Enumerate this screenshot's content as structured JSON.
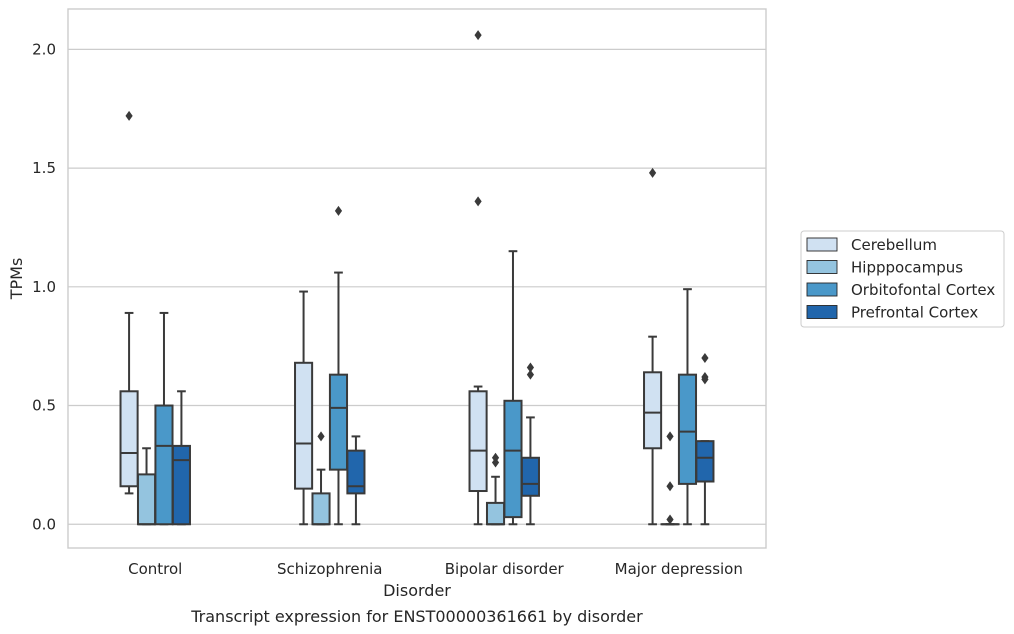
{
  "caption": "Transcript expression for ENST00000361661 by disorder",
  "chart_data": {
    "type": "box",
    "xlabel": "Disorder",
    "ylabel": "TPMs",
    "ylim": [
      -0.1,
      2.17
    ],
    "yticks": [
      0.0,
      0.5,
      1.0,
      1.5,
      2.0
    ],
    "ytick_labels": [
      "0.0",
      "0.5",
      "1.0",
      "1.5",
      "2.0"
    ],
    "grid": "horizontal",
    "legend_position": "right",
    "categories": [
      "Control",
      "Schizophrenia",
      "Bipolar disorder",
      "Major depression"
    ],
    "series": [
      {
        "name": "Cerebellum",
        "color": "#d0e1f2",
        "boxes": [
          {
            "whislo": 0.13,
            "q1": 0.16,
            "med": 0.3,
            "q3": 0.56,
            "whishi": 0.89,
            "fliers": [
              1.72
            ]
          },
          {
            "whislo": 0.0,
            "q1": 0.15,
            "med": 0.34,
            "q3": 0.68,
            "whishi": 0.98,
            "fliers": []
          },
          {
            "whislo": 0.0,
            "q1": 0.14,
            "med": 0.31,
            "q3": 0.56,
            "whishi": 0.58,
            "fliers": [
              1.36,
              2.06
            ]
          },
          {
            "whislo": 0.0,
            "q1": 0.32,
            "med": 0.47,
            "q3": 0.64,
            "whishi": 0.79,
            "fliers": [
              1.48
            ]
          }
        ]
      },
      {
        "name": "Hipppocampus",
        "color": "#94c4df",
        "boxes": [
          {
            "whislo": 0.0,
            "q1": 0.0,
            "med": 0.0,
            "q3": 0.21,
            "whishi": 0.32,
            "fliers": []
          },
          {
            "whislo": 0.0,
            "q1": 0.0,
            "med": 0.0,
            "q3": 0.13,
            "whishi": 0.23,
            "fliers": [
              0.37
            ]
          },
          {
            "whislo": 0.0,
            "q1": 0.0,
            "med": 0.0,
            "q3": 0.09,
            "whishi": 0.2,
            "fliers": [
              0.26,
              0.28
            ]
          },
          {
            "whislo": 0.0,
            "q1": 0.0,
            "med": 0.0,
            "q3": 0.0,
            "whishi": 0.0,
            "fliers": [
              0.02,
              0.16,
              0.37
            ]
          }
        ]
      },
      {
        "name": "Orbitofontal Cortex",
        "color": "#4a98c9",
        "boxes": [
          {
            "whislo": 0.0,
            "q1": 0.0,
            "med": 0.33,
            "q3": 0.5,
            "whishi": 0.89,
            "fliers": []
          },
          {
            "whislo": 0.0,
            "q1": 0.23,
            "med": 0.49,
            "q3": 0.63,
            "whishi": 1.06,
            "fliers": [
              1.32
            ]
          },
          {
            "whislo": 0.0,
            "q1": 0.03,
            "med": 0.31,
            "q3": 0.52,
            "whishi": 1.15,
            "fliers": []
          },
          {
            "whislo": 0.0,
            "q1": 0.17,
            "med": 0.39,
            "q3": 0.63,
            "whishi": 0.99,
            "fliers": []
          }
        ]
      },
      {
        "name": "Prefrontal Cortex",
        "color": "#2166ac",
        "boxes": [
          {
            "whislo": 0.0,
            "q1": 0.0,
            "med": 0.27,
            "q3": 0.33,
            "whishi": 0.56,
            "fliers": []
          },
          {
            "whislo": 0.0,
            "q1": 0.13,
            "med": 0.16,
            "q3": 0.31,
            "whishi": 0.37,
            "fliers": []
          },
          {
            "whislo": 0.0,
            "q1": 0.12,
            "med": 0.17,
            "q3": 0.28,
            "whishi": 0.45,
            "fliers": [
              0.63,
              0.66
            ]
          },
          {
            "whislo": 0.0,
            "q1": 0.18,
            "med": 0.28,
            "q3": 0.35,
            "whishi": 0.35,
            "fliers": [
              0.61,
              0.62,
              0.7
            ]
          }
        ]
      }
    ]
  }
}
